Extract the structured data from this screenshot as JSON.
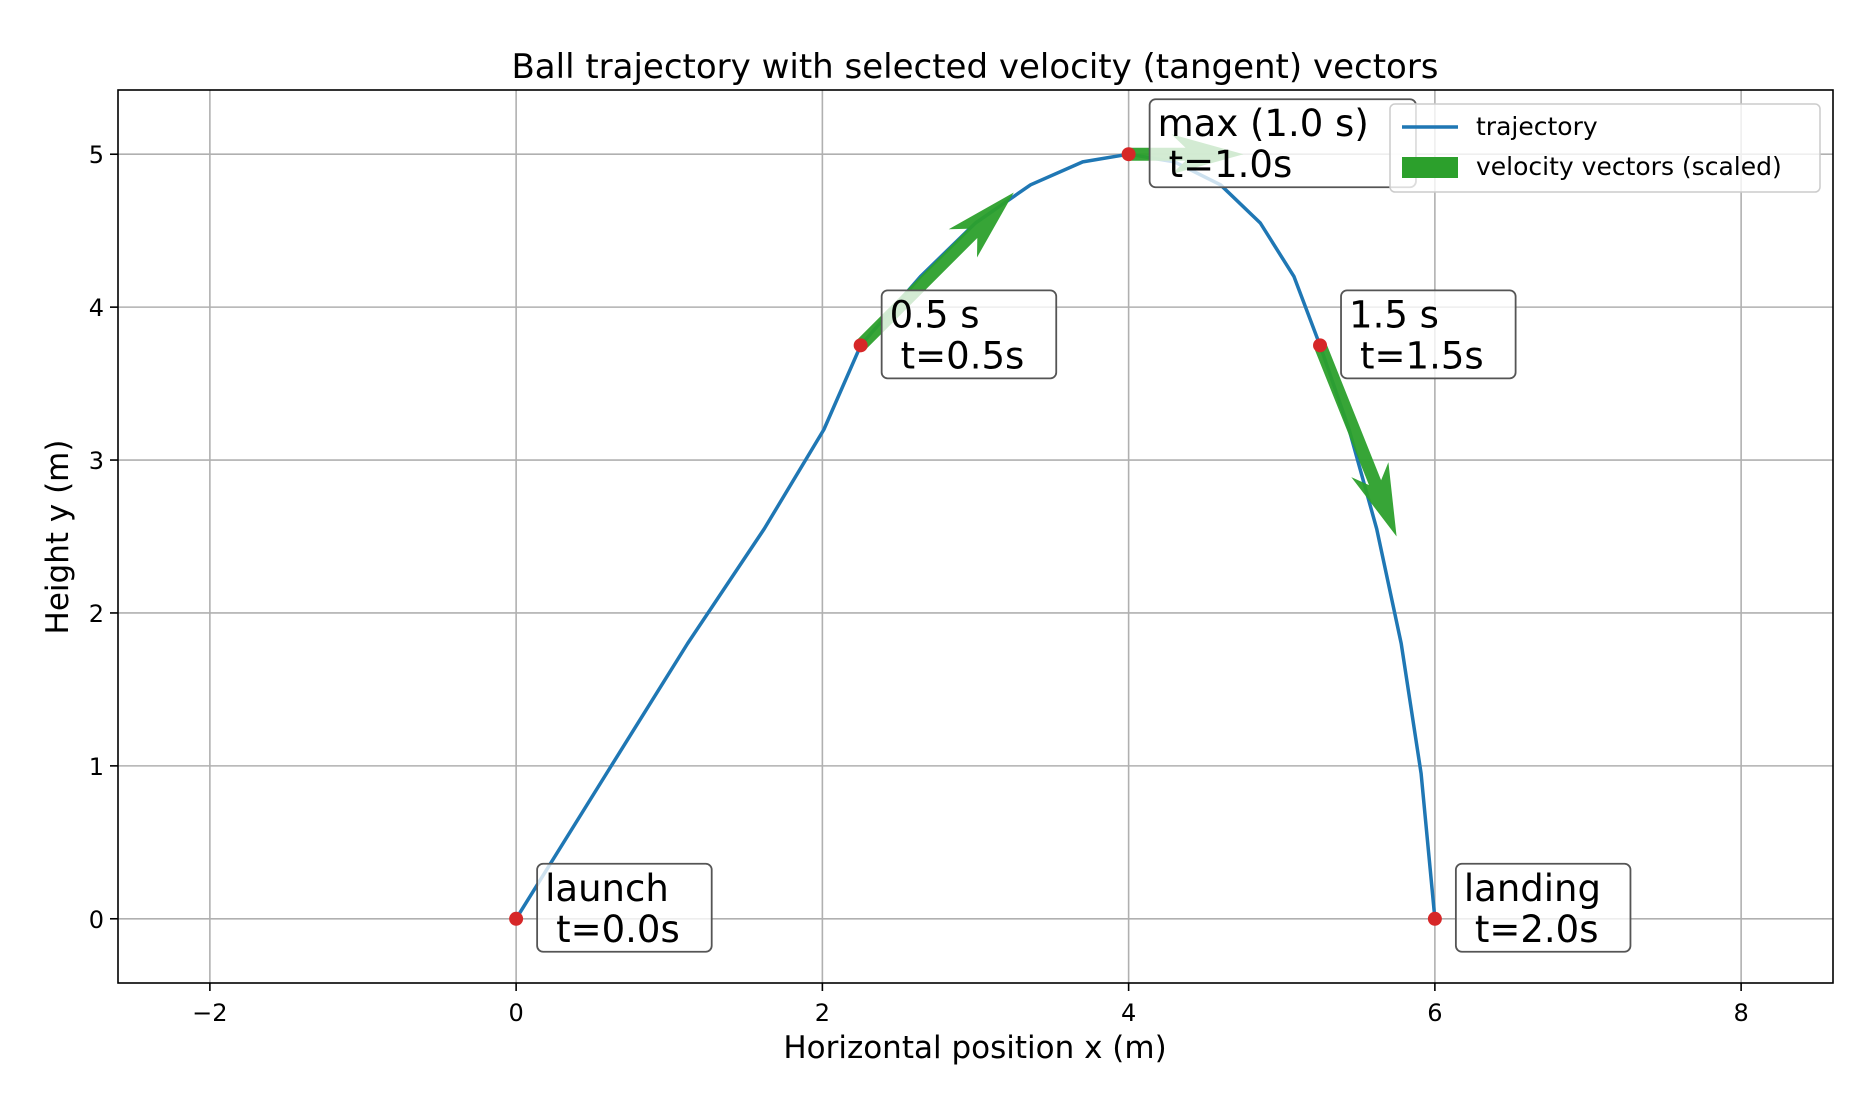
{
  "chart_data": {
    "type": "line",
    "title": "Ball trajectory with selected velocity (tangent) vectors",
    "xlabel": "Horizontal position x (m)",
    "ylabel": "Height y (m)",
    "xlim": [
      -2.6,
      8.6
    ],
    "ylim": [
      -0.42,
      5.42
    ],
    "xticks": [
      -2,
      0,
      2,
      4,
      6,
      8
    ],
    "yticks": [
      0,
      1,
      2,
      3,
      4,
      5
    ],
    "xtick_labels": [
      "−2",
      "0",
      "2",
      "4",
      "6",
      "8"
    ],
    "ytick_labels": [
      "0",
      "1",
      "2",
      "3",
      "4",
      "5"
    ],
    "grid": true,
    "legend": {
      "location": "top-right",
      "entries": [
        {
          "label": "trajectory",
          "kind": "line",
          "color": "#1f77b4"
        },
        {
          "label": "velocity vectors (scaled)",
          "kind": "patch",
          "color": "#2ca02c"
        }
      ]
    },
    "series": [
      {
        "name": "trajectory",
        "color": "#1f77b4",
        "points": [
          {
            "t": 0.0,
            "x": 0.0,
            "y": 0.0
          },
          {
            "t": 0.1,
            "x": 0.59,
            "y": 0.95
          },
          {
            "t": 0.2,
            "x": 1.12,
            "y": 1.8
          },
          {
            "t": 0.3,
            "x": 1.62,
            "y": 2.55
          },
          {
            "t": 0.4,
            "x": 2.01,
            "y": 3.2
          },
          {
            "t": 0.5,
            "x": 2.25,
            "y": 3.75
          },
          {
            "t": 0.6,
            "x": 2.64,
            "y": 4.2
          },
          {
            "t": 0.7,
            "x": 3.0,
            "y": 4.55
          },
          {
            "t": 0.8,
            "x": 3.36,
            "y": 4.8
          },
          {
            "t": 0.9,
            "x": 3.7,
            "y": 4.95
          },
          {
            "t": 1.0,
            "x": 4.0,
            "y": 5.0
          },
          {
            "t": 1.1,
            "x": 4.3,
            "y": 4.95
          },
          {
            "t": 1.2,
            "x": 4.6,
            "y": 4.8
          },
          {
            "t": 1.3,
            "x": 4.86,
            "y": 4.55
          },
          {
            "t": 1.4,
            "x": 5.08,
            "y": 4.2
          },
          {
            "t": 1.5,
            "x": 5.25,
            "y": 3.75
          },
          {
            "t": 1.6,
            "x": 5.44,
            "y": 3.2
          },
          {
            "t": 1.7,
            "x": 5.62,
            "y": 2.55
          },
          {
            "t": 1.8,
            "x": 5.78,
            "y": 1.8
          },
          {
            "t": 1.9,
            "x": 5.91,
            "y": 0.95
          },
          {
            "t": 2.0,
            "x": 6.0,
            "y": 0.0
          }
        ]
      }
    ],
    "velocity_vectors": [
      {
        "x": 2.25,
        "y": 3.75,
        "dx": 1.0,
        "dy": 1.0
      },
      {
        "x": 4.0,
        "y": 5.0,
        "dx": 0.75,
        "dy": 0.0
      },
      {
        "x": 5.25,
        "y": 3.75,
        "dx": 0.5,
        "dy": -1.25
      }
    ],
    "marked_points": [
      {
        "t": 0.0,
        "x": 0.0,
        "y": 0.0,
        "label": "launch",
        "time_text": "t=0.0s"
      },
      {
        "t": 0.5,
        "x": 2.25,
        "y": 3.75,
        "label": "0.5 s",
        "time_text": "t=0.5s"
      },
      {
        "t": 1.0,
        "x": 4.0,
        "y": 5.0,
        "label": "max (1.0 s)",
        "time_text": "t=1.0s"
      },
      {
        "t": 1.5,
        "x": 5.25,
        "y": 3.75,
        "label": "1.5 s",
        "time_text": "t=1.5s"
      },
      {
        "t": 2.0,
        "x": 6.0,
        "y": 0.0,
        "label": "landing",
        "time_text": "t=2.0s"
      }
    ],
    "colors": {
      "trajectory": "#1f77b4",
      "vectors": "#2ca02c",
      "points": "#d62728",
      "grid": "#b0b0b0",
      "axes": "#000000"
    }
  }
}
